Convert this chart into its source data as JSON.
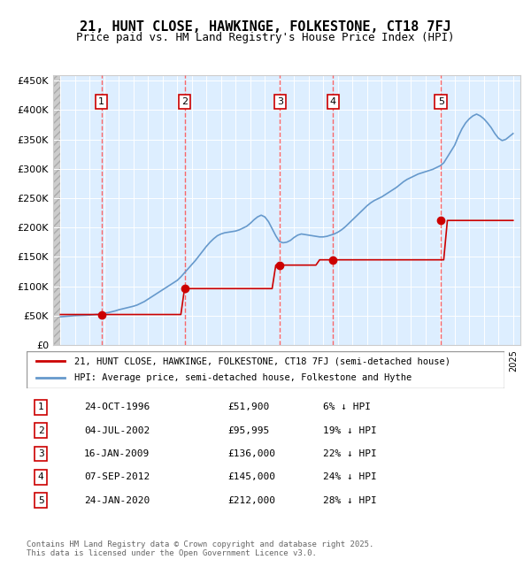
{
  "title": "21, HUNT CLOSE, HAWKINGE, FOLKESTONE, CT18 7FJ",
  "subtitle": "Price paid vs. HM Land Registry's House Price Index (HPI)",
  "legend_line1": "21, HUNT CLOSE, HAWKINGE, FOLKESTONE, CT18 7FJ (semi-detached house)",
  "legend_line2": "HPI: Average price, semi-detached house, Folkestone and Hythe",
  "footer": "Contains HM Land Registry data © Crown copyright and database right 2025.\nThis data is licensed under the Open Government Licence v3.0.",
  "sales": [
    {
      "num": 1,
      "date": "24-OCT-1996",
      "price": 51900,
      "pct": "6%",
      "x_year": 1996.81
    },
    {
      "num": 2,
      "date": "04-JUL-2002",
      "price": 95995,
      "pct": "19%",
      "x_year": 2002.5
    },
    {
      "num": 3,
      "date": "16-JAN-2009",
      "price": 136000,
      "pct": "22%",
      "x_year": 2009.04
    },
    {
      "num": 4,
      "date": "07-SEP-2012",
      "price": 145000,
      "pct": "24%",
      "x_year": 2012.68
    },
    {
      "num": 5,
      "date": "24-JAN-2020",
      "price": 212000,
      "pct": "28%",
      "x_year": 2020.06
    }
  ],
  "hpi_color": "#6699cc",
  "sale_color": "#cc0000",
  "sale_marker_color": "#cc0000",
  "hpi_data_x": [
    1994.0,
    1994.25,
    1994.5,
    1994.75,
    1995.0,
    1995.25,
    1995.5,
    1995.75,
    1996.0,
    1996.25,
    1996.5,
    1996.75,
    1997.0,
    1997.25,
    1997.5,
    1997.75,
    1998.0,
    1998.25,
    1998.5,
    1998.75,
    1999.0,
    1999.25,
    1999.5,
    1999.75,
    2000.0,
    2000.25,
    2000.5,
    2000.75,
    2001.0,
    2001.25,
    2001.5,
    2001.75,
    2002.0,
    2002.25,
    2002.5,
    2002.75,
    2003.0,
    2003.25,
    2003.5,
    2003.75,
    2004.0,
    2004.25,
    2004.5,
    2004.75,
    2005.0,
    2005.25,
    2005.5,
    2005.75,
    2006.0,
    2006.25,
    2006.5,
    2006.75,
    2007.0,
    2007.25,
    2007.5,
    2007.75,
    2008.0,
    2008.25,
    2008.5,
    2008.75,
    2009.0,
    2009.25,
    2009.5,
    2009.75,
    2010.0,
    2010.25,
    2010.5,
    2010.75,
    2011.0,
    2011.25,
    2011.5,
    2011.75,
    2012.0,
    2012.25,
    2012.5,
    2012.75,
    2013.0,
    2013.25,
    2013.5,
    2013.75,
    2014.0,
    2014.25,
    2014.5,
    2014.75,
    2015.0,
    2015.25,
    2015.5,
    2015.75,
    2016.0,
    2016.25,
    2016.5,
    2016.75,
    2017.0,
    2017.25,
    2017.5,
    2017.75,
    2018.0,
    2018.25,
    2018.5,
    2018.75,
    2019.0,
    2019.25,
    2019.5,
    2019.75,
    2020.0,
    2020.25,
    2020.5,
    2020.75,
    2021.0,
    2021.25,
    2021.5,
    2021.75,
    2022.0,
    2022.25,
    2022.5,
    2022.75,
    2023.0,
    2023.25,
    2023.5,
    2023.75,
    2024.0,
    2024.25,
    2024.5,
    2024.75,
    2025.0
  ],
  "hpi_data_y": [
    48000,
    48500,
    49000,
    49500,
    50000,
    50200,
    50400,
    50600,
    51000,
    51500,
    52000,
    52800,
    54000,
    55000,
    56500,
    58000,
    60000,
    61500,
    63000,
    64500,
    66000,
    68000,
    71000,
    74000,
    78000,
    82000,
    86000,
    90000,
    94000,
    98000,
    102000,
    106000,
    110000,
    116000,
    123000,
    130000,
    137000,
    144000,
    152000,
    160000,
    168000,
    175000,
    181000,
    186000,
    189000,
    191000,
    192000,
    193000,
    194000,
    196000,
    199000,
    202000,
    207000,
    213000,
    218000,
    221000,
    218000,
    210000,
    198000,
    186000,
    176000,
    174000,
    175000,
    178000,
    183000,
    187000,
    189000,
    188000,
    187000,
    186000,
    185000,
    184000,
    184000,
    185000,
    187000,
    189000,
    192000,
    196000,
    201000,
    207000,
    213000,
    219000,
    225000,
    231000,
    237000,
    242000,
    246000,
    249000,
    252000,
    256000,
    260000,
    264000,
    268000,
    273000,
    278000,
    282000,
    285000,
    288000,
    291000,
    293000,
    295000,
    297000,
    299000,
    302000,
    305000,
    310000,
    320000,
    330000,
    340000,
    355000,
    368000,
    378000,
    385000,
    390000,
    393000,
    390000,
    385000,
    378000,
    370000,
    360000,
    352000,
    348000,
    350000,
    355000,
    360000
  ],
  "sale_line_x": [
    1994.0,
    1994.25,
    1994.5,
    1994.75,
    1995.0,
    1995.25,
    1995.5,
    1995.75,
    1996.0,
    1996.25,
    1996.5,
    1996.75,
    1997.0,
    1997.25,
    1997.5,
    1997.75,
    1998.0,
    1998.25,
    1998.5,
    1998.75,
    1999.0,
    1999.25,
    1999.5,
    1999.75,
    2000.0,
    2000.25,
    2000.5,
    2000.75,
    2001.0,
    2001.25,
    2001.5,
    2001.75,
    2002.0,
    2002.25,
    2002.5,
    2002.75,
    2003.0,
    2003.25,
    2003.5,
    2003.75,
    2004.0,
    2004.25,
    2004.5,
    2004.75,
    2005.0,
    2005.25,
    2005.5,
    2005.75,
    2006.0,
    2006.25,
    2006.5,
    2006.75,
    2007.0,
    2007.25,
    2007.5,
    2007.75,
    2008.0,
    2008.25,
    2008.5,
    2008.75,
    2009.0,
    2009.25,
    2009.5,
    2009.75,
    2010.0,
    2010.25,
    2010.5,
    2010.75,
    2011.0,
    2011.25,
    2011.5,
    2011.75,
    2012.0,
    2012.25,
    2012.5,
    2012.75,
    2013.0,
    2013.25,
    2013.5,
    2013.75,
    2014.0,
    2014.25,
    2014.5,
    2014.75,
    2015.0,
    2015.25,
    2015.5,
    2015.75,
    2016.0,
    2016.25,
    2016.5,
    2016.75,
    2017.0,
    2017.25,
    2017.5,
    2017.75,
    2018.0,
    2018.25,
    2018.5,
    2018.75,
    2019.0,
    2019.25,
    2019.5,
    2019.75,
    2020.0,
    2020.25,
    2020.5,
    2020.75,
    2021.0,
    2021.25,
    2021.5,
    2021.75,
    2022.0,
    2022.25,
    2022.5,
    2022.75,
    2023.0,
    2023.25,
    2023.5,
    2023.75,
    2024.0,
    2024.25,
    2024.5,
    2024.75,
    2025.0
  ],
  "sale_line_y": [
    51900,
    51900,
    51900,
    51900,
    51900,
    51900,
    51900,
    51900,
    51900,
    51900,
    51900,
    51900,
    51900,
    51900,
    51900,
    51900,
    51900,
    51900,
    51900,
    51900,
    51900,
    51900,
    51900,
    51900,
    51900,
    51900,
    51900,
    51900,
    51900,
    51900,
    51900,
    51900,
    51900,
    51900,
    95995,
    95995,
    95995,
    95995,
    95995,
    95995,
    95995,
    95995,
    95995,
    95995,
    95995,
    95995,
    95995,
    95995,
    95995,
    95995,
    95995,
    95995,
    95995,
    95995,
    95995,
    95995,
    95995,
    95995,
    95995,
    136000,
    136000,
    136000,
    136000,
    136000,
    136000,
    136000,
    136000,
    136000,
    136000,
    136000,
    136000,
    145000,
    145000,
    145000,
    145000,
    145000,
    145000,
    145000,
    145000,
    145000,
    145000,
    145000,
    145000,
    145000,
    145000,
    145000,
    145000,
    145000,
    145000,
    145000,
    145000,
    145000,
    145000,
    145000,
    145000,
    145000,
    145000,
    145000,
    145000,
    145000,
    145000,
    145000,
    145000,
    145000,
    145000,
    145000,
    212000,
    212000,
    212000,
    212000,
    212000,
    212000,
    212000,
    212000,
    212000,
    212000,
    212000,
    212000,
    212000,
    212000,
    212000,
    212000,
    212000,
    212000,
    212000
  ],
  "ylim": [
    0,
    460000
  ],
  "yticks": [
    0,
    50000,
    100000,
    150000,
    200000,
    250000,
    300000,
    350000,
    400000,
    450000
  ],
  "ytick_labels": [
    "£0",
    "£50K",
    "£100K",
    "£150K",
    "£200K",
    "£250K",
    "£300K",
    "£350K",
    "£400K",
    "£450K"
  ],
  "xlim": [
    1993.5,
    2025.5
  ],
  "xticks": [
    1994,
    1995,
    1996,
    1997,
    1998,
    1999,
    2000,
    2001,
    2002,
    2003,
    2004,
    2005,
    2006,
    2007,
    2008,
    2009,
    2010,
    2011,
    2012,
    2013,
    2014,
    2015,
    2016,
    2017,
    2018,
    2019,
    2020,
    2021,
    2022,
    2023,
    2024,
    2025
  ],
  "chart_bg": "#ddeeff",
  "hatch_color": "#bbbbbb",
  "grid_color": "#ffffff",
  "vline_color": "#ff4444"
}
